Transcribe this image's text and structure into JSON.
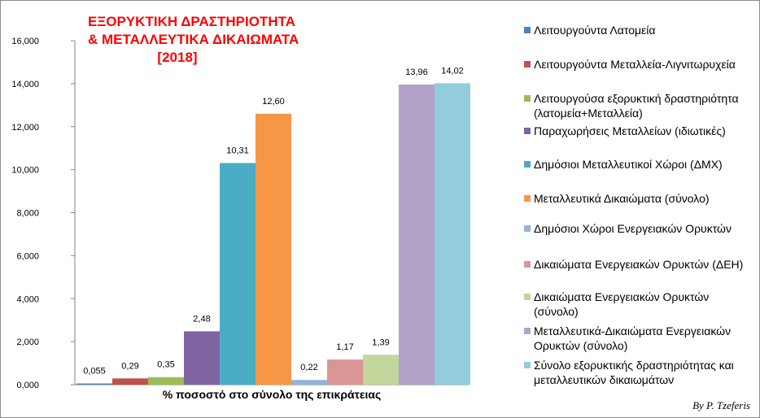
{
  "title": {
    "line1": "ΕΞΟΡΥΚΤΙΚΗ ΔΡΑΣΤΗΡΙΟΤΗΤΑ",
    "line2": "& ΜΕΤΑΛΛΕΥΤΙΚΑ ΔΙΚΑΙΩΜΑΤΑ",
    "line3": "[2018]"
  },
  "credit": "By P. Tzeferis",
  "chart_data": {
    "type": "bar",
    "xlabel": "% ποσοστό στο σύνολο της επικράτειας",
    "ylabel": "",
    "ylim": [
      0,
      16
    ],
    "yticks": [
      "0,000",
      "2,000",
      "4,000",
      "6,000",
      "8,000",
      "10,000",
      "12,000",
      "14,000",
      "16,000"
    ],
    "grid": false,
    "legend_position": "right",
    "series": [
      {
        "name": "Λειτουργούντα Λατομεία",
        "value": 0.055,
        "label": "0,055",
        "color": "#4f81bd"
      },
      {
        "name": "Λειτουργούντα Μεταλλεία-Λιγνιτωρυχεία",
        "value": 0.29,
        "label": "0,29",
        "color": "#c0504d"
      },
      {
        "name": "Λειτουργούσα εξορυκτική δραστηριότητα (λατομεία+Μεταλλεία)",
        "value": 0.35,
        "label": "0,35",
        "color": "#9bbb59"
      },
      {
        "name": "Παραχωρήσεις Μεταλλείων (ιδιωτικές)",
        "value": 2.48,
        "label": "2,48",
        "color": "#8064a2"
      },
      {
        "name": "Δημόσιοι Μεταλλευτικοί Χώροι (ΔΜΧ)",
        "value": 10.31,
        "label": "10,31",
        "color": "#4bacc6"
      },
      {
        "name": "Μεταλλευτικά Δικαιώματα (σύνολο)",
        "value": 12.6,
        "label": "12,60",
        "color": "#f79646"
      },
      {
        "name": "Δημόσιοι  Χώροι Ενεργειακών Ορυκτών",
        "value": 0.22,
        "label": "0,22",
        "color": "#95b3d7"
      },
      {
        "name": "Δικαιώματα Ενεργειακών Ορυκτών (ΔΕΗ)",
        "value": 1.17,
        "label": "1,17",
        "color": "#d99694"
      },
      {
        "name": "Δικαιώματα Ενεργειακών Ορυκτών (σύνολο)",
        "value": 1.39,
        "label": "1,39",
        "color": "#c3d69b"
      },
      {
        "name": "Μεταλλευτικά-Δικαιώματα Ενεργειακών Ορυκτών (σύνολο)",
        "value": 13.96,
        "label": "13,96",
        "color": "#b2a2c7"
      },
      {
        "name": "Σύνολο εξορυκτικής δραστηριότητας και μεταλλευτικών δικαιωμάτων",
        "value": 14.02,
        "label": "14,02",
        "color": "#93cddd"
      }
    ]
  }
}
